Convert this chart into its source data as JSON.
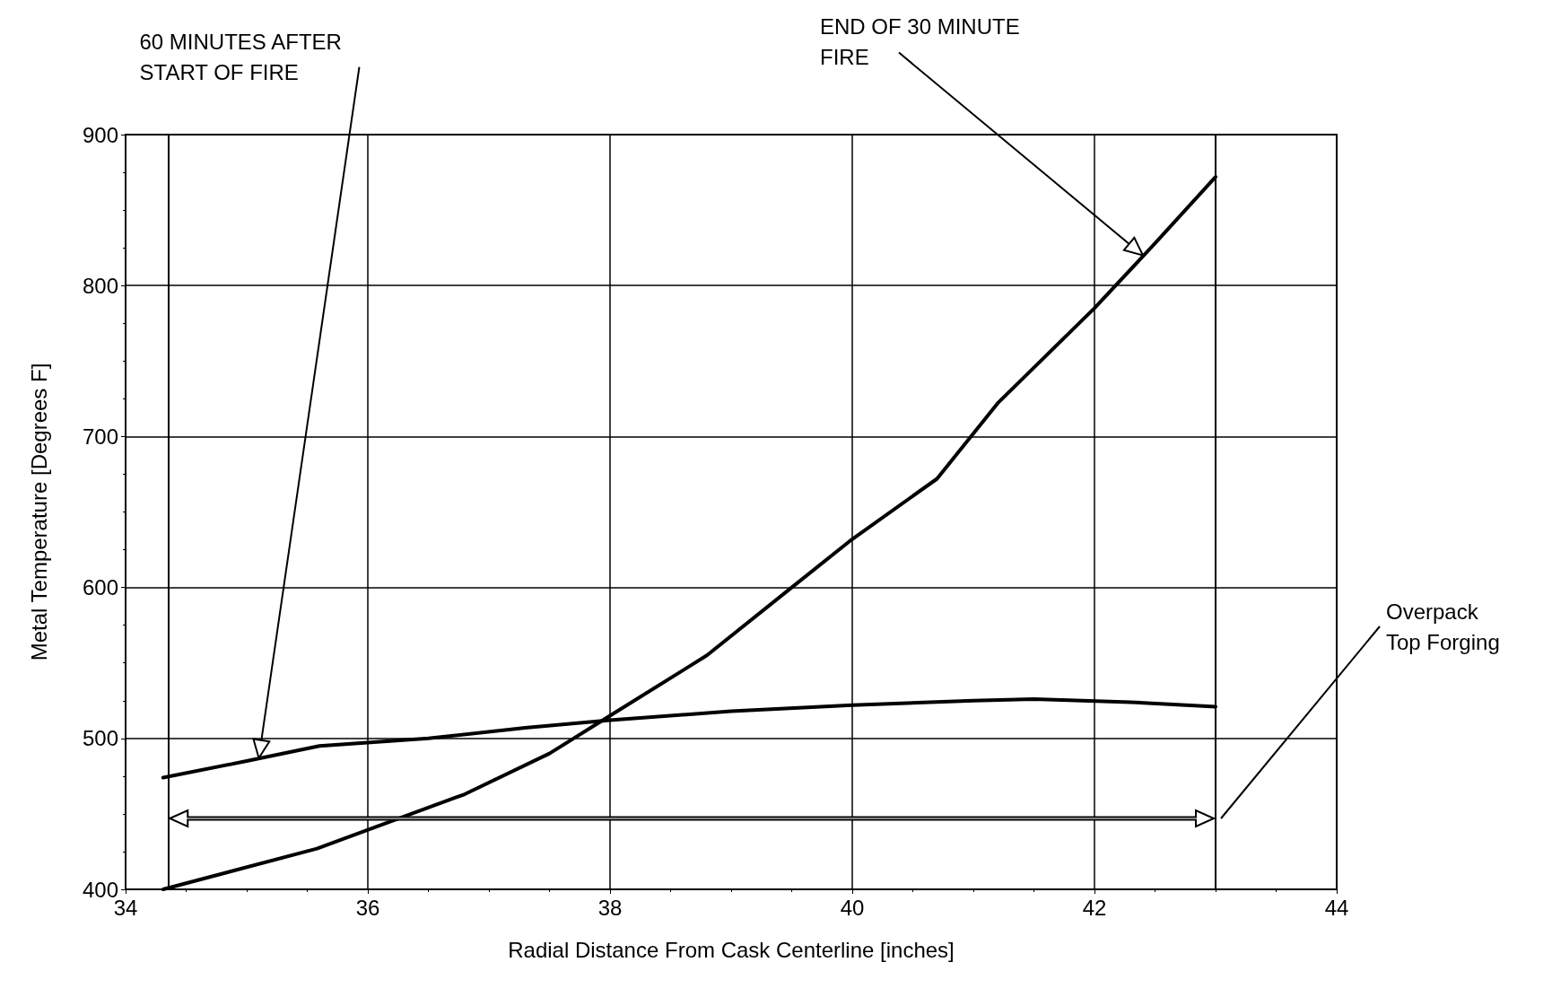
{
  "chart_data": {
    "type": "line",
    "xlabel": "Radial Distance From Cask Centerline [inches]",
    "ylabel": "Metal Temperature [Degrees F]",
    "xlim": [
      34,
      44
    ],
    "xticks": [
      34,
      36,
      38,
      40,
      42,
      44
    ],
    "ylim": [
      400,
      900
    ],
    "yticks": [
      400,
      500,
      600,
      700,
      800,
      900
    ],
    "grid": true,
    "marker": "none",
    "line_style": "solid",
    "series": [
      {
        "color": "#000000",
        "x": [
          34.31,
          35.58,
          36.8,
          37.5,
          38.0,
          38.8,
          39.5,
          40.0,
          40.7,
          41.2,
          42.0,
          42.5,
          43.0
        ],
        "values": [
          400,
          427,
          463,
          490,
          515,
          555,
          600,
          632,
          672,
          722,
          785,
          828,
          872
        ]
      },
      {
        "color": "#000000",
        "x": [
          34.31,
          35.0,
          35.6,
          36.5,
          37.3,
          38.0,
          39.0,
          40.0,
          41.0,
          41.5,
          42.3,
          43.0
        ],
        "values": [
          474,
          485,
          495,
          500,
          507,
          512,
          518,
          522,
          525,
          526,
          524,
          521
        ]
      }
    ],
    "ref_lines": [
      {
        "axis": "x",
        "value": 34.35,
        "color": "#000000"
      },
      {
        "axis": "x",
        "value": 43.0,
        "color": "#000000"
      }
    ],
    "annotations": [
      {
        "text": "60 MINUTES AFTER START OF FIRE",
        "x": 35.1,
        "y": 487
      },
      {
        "text": "END OF 30 MINUTE FIRE",
        "x": 42.4,
        "y": 820
      },
      "Overpack Top Forging"
    ]
  }
}
